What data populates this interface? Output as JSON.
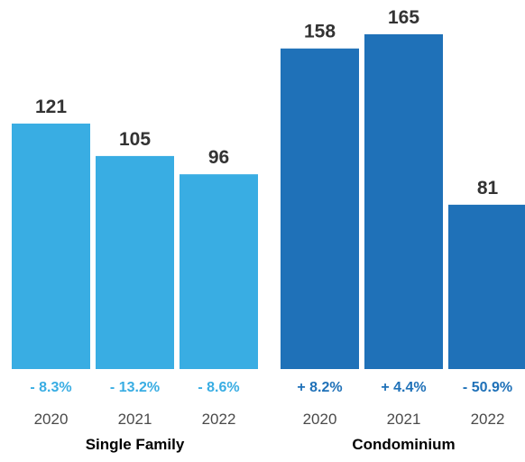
{
  "chart_data": {
    "type": "bar",
    "ylim": [
      0,
      185
    ],
    "groups": [
      {
        "name": "Single Family",
        "color": "#39ADE3",
        "categories": [
          "2020",
          "2021",
          "2022"
        ],
        "values": [
          121,
          105,
          96
        ],
        "value_labels": [
          "121",
          "105",
          "96"
        ],
        "changes": [
          "- 8.3%",
          "- 13.2%",
          "- 8.6%"
        ]
      },
      {
        "name": "Condominium",
        "color": "#1F71B8",
        "categories": [
          "2020",
          "2021",
          "2022"
        ],
        "values": [
          158,
          165,
          81
        ],
        "value_labels": [
          "158",
          "165",
          "81"
        ],
        "changes": [
          "+ 8.2%",
          "+ 4.4%",
          "- 50.9%"
        ]
      }
    ]
  }
}
